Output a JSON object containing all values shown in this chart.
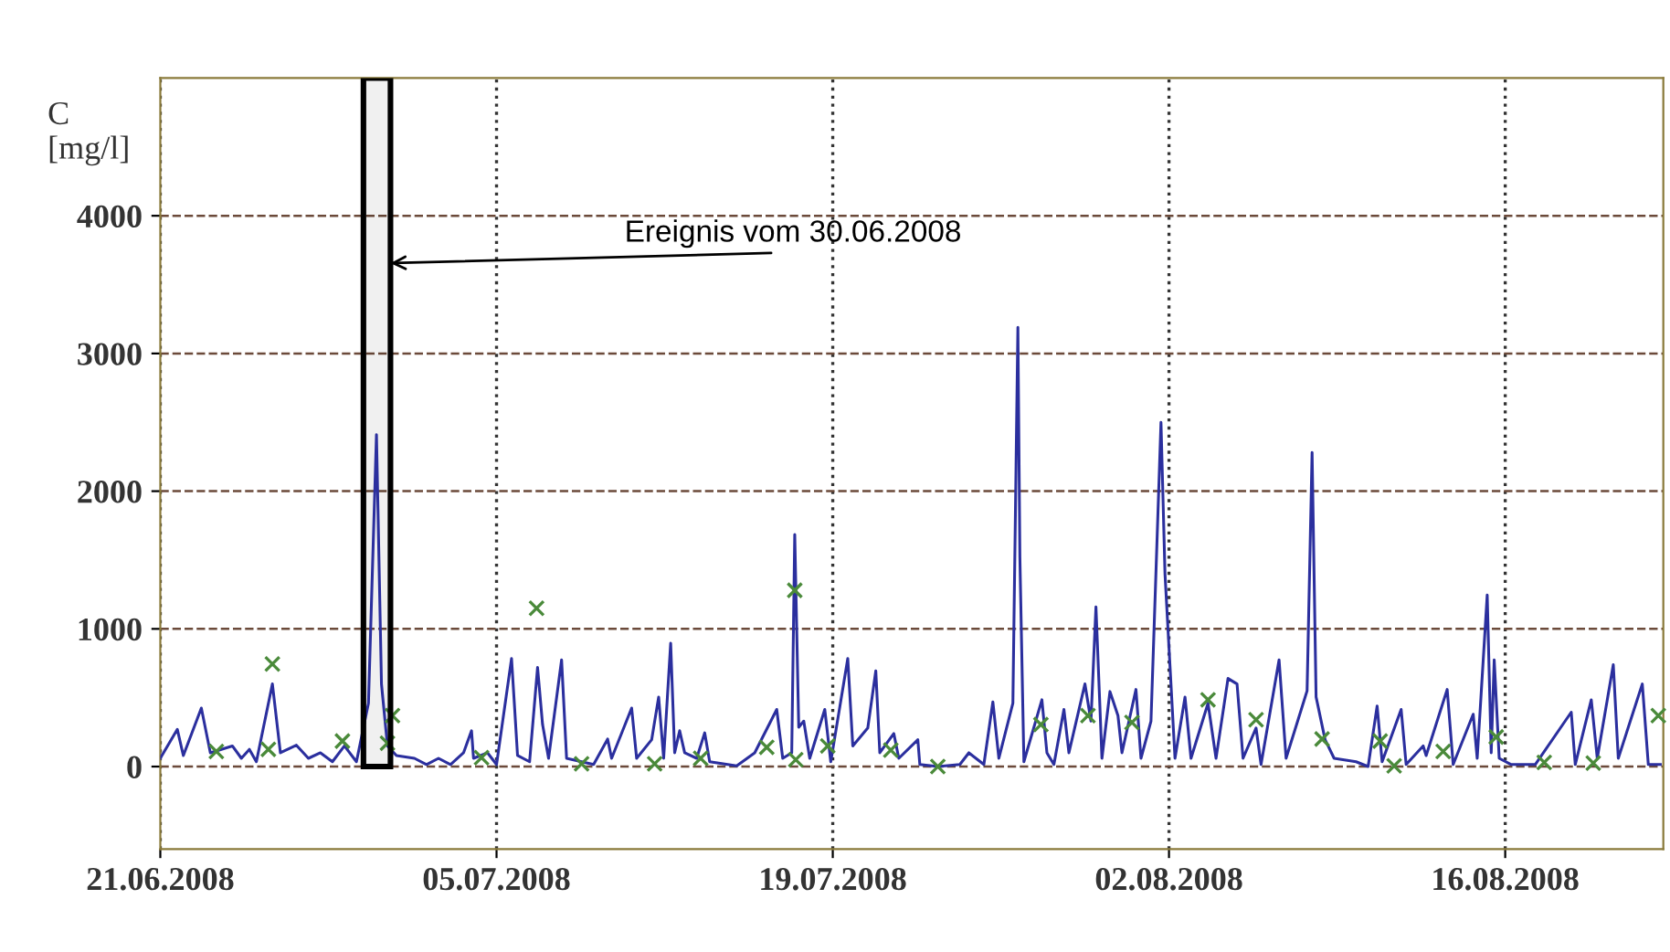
{
  "chart_data": {
    "type": "line",
    "ylabel": "C\n[mg/l]",
    "xlim": [
      "2008-06-21",
      "2008-08-22T14:00"
    ],
    "ylim": [
      -600,
      5000
    ],
    "xticks": [
      {
        "value": "2008-06-21",
        "label": "21.06.2008"
      },
      {
        "value": "2008-07-05",
        "label": "05.07.2008"
      },
      {
        "value": "2008-07-19",
        "label": "19.07.2008"
      },
      {
        "value": "2008-08-02",
        "label": "02.08.2008"
      },
      {
        "value": "2008-08-16",
        "label": "16.08.2008"
      }
    ],
    "yticks": [
      0,
      1000,
      2000,
      3000,
      4000
    ],
    "grid": true,
    "line_style": "dashed",
    "bands": [
      {
        "axis": "x",
        "from": "2008-06-29T11:00",
        "to": "2008-06-30T14:00",
        "color": "#000000",
        "label": "Ereignis vom 30.06.2008"
      }
    ],
    "series": [
      {
        "color": "#2b2f9e",
        "marker": "none",
        "line_style": "solid",
        "x": [
          "2008-06-21T00:00",
          "2008-06-21T17:00",
          "2008-06-21T23:00",
          "2008-06-22T17:00",
          "2008-06-23T02:00",
          "2008-06-24T00:00",
          "2008-06-24T09:00",
          "2008-06-24T17:00",
          "2008-06-25T00:00",
          "2008-06-25T16:00",
          "2008-06-26T00:00",
          "2008-06-26T16:00",
          "2008-06-27T04:00",
          "2008-06-27T16:00",
          "2008-06-28T04:00",
          "2008-06-28T16:00",
          "2008-06-29T04:00",
          "2008-06-29T16:00",
          "2008-06-30T00:00",
          "2008-06-30T05:00",
          "2008-06-30T11:00",
          "2008-06-30T20:00",
          "2008-07-01T14:00",
          "2008-07-02T02:00",
          "2008-07-02T14:00",
          "2008-07-03T02:00",
          "2008-07-03T15:00",
          "2008-07-03T23:00",
          "2008-07-04T01:00",
          "2008-07-04T15:00",
          "2008-07-05T00:00",
          "2008-07-05T15:00",
          "2008-07-05T21:00",
          "2008-07-06T09:00",
          "2008-07-06T17:00",
          "2008-07-06T22:00",
          "2008-07-07T04:00",
          "2008-07-07T17:00",
          "2008-07-07T22:00",
          "2008-07-09T01:00",
          "2008-07-09T15:00",
          "2008-07-09T19:00",
          "2008-07-10T15:00",
          "2008-07-10T20:00",
          "2008-07-11T11:00",
          "2008-07-11T18:00",
          "2008-07-11T23:00",
          "2008-07-12T06:00",
          "2008-07-12T10:00",
          "2008-07-12T15:00",
          "2008-07-12T20:00",
          "2008-07-13T08:00",
          "2008-07-13T16:00",
          "2008-07-13T21:00",
          "2008-07-15T00:00",
          "2008-07-15T18:00",
          "2008-07-16T16:00",
          "2008-07-16T22:00",
          "2008-07-17T07:00",
          "2008-07-17T10:00",
          "2008-07-17T14:00",
          "2008-07-17T19:00",
          "2008-07-18T01:00",
          "2008-07-18T16:00",
          "2008-07-18T22:00",
          "2008-07-19T15:00",
          "2008-07-19T20:00",
          "2008-07-20T11:00",
          "2008-07-20T19:00",
          "2008-07-20T23:00",
          "2008-07-21T13:00",
          "2008-07-21T18:00",
          "2008-07-22T13:00",
          "2008-07-22T15:00",
          "2008-07-23T09:00",
          "2008-07-24T07:00",
          "2008-07-24T16:00",
          "2008-07-25T07:00",
          "2008-07-25T16:00",
          "2008-07-25T22:00",
          "2008-07-26T12:00",
          "2008-07-26T17:00",
          "2008-07-26T19:00",
          "2008-07-26T23:00",
          "2008-07-27T17:00",
          "2008-07-27T22:00",
          "2008-07-28T05:00",
          "2008-07-28T15:00",
          "2008-07-28T20:00",
          "2008-07-29T12:00",
          "2008-07-29T18:00",
          "2008-07-29T23:00",
          "2008-07-30T05:00",
          "2008-07-30T13:00",
          "2008-07-30T21:00",
          "2008-07-31T01:00",
          "2008-07-31T15:00",
          "2008-07-31T20:00",
          "2008-08-01T06:00",
          "2008-08-01T16:00",
          "2008-08-01T20:00",
          "2008-08-02T01:00",
          "2008-08-02T06:00",
          "2008-08-02T16:00",
          "2008-08-02T22:00",
          "2008-08-03T15:00",
          "2008-08-03T23:00",
          "2008-08-04T11:00",
          "2008-08-04T20:00",
          "2008-08-05T02:00",
          "2008-08-05T15:00",
          "2008-08-05T20:00",
          "2008-08-06T14:00",
          "2008-08-06T21:00",
          "2008-08-07T18:00",
          "2008-08-07T23:00",
          "2008-08-08T03:00",
          "2008-08-08T12:00",
          "2008-08-08T21:00",
          "2008-08-09T19:00",
          "2008-08-10T07:00",
          "2008-08-10T16:00",
          "2008-08-10T21:00",
          "2008-08-11T16:00",
          "2008-08-11T21:00",
          "2008-08-12T14:00",
          "2008-08-12T17:00",
          "2008-08-13T14:00",
          "2008-08-13T20:00",
          "2008-08-14T16:00",
          "2008-08-14T20:00",
          "2008-08-15T06:00",
          "2008-08-15T10:00",
          "2008-08-15T13:00",
          "2008-08-15T18:00",
          "2008-08-16T06:00",
          "2008-08-17T06:00",
          "2008-08-18T18:00",
          "2008-08-18T22:00",
          "2008-08-19T14:00",
          "2008-08-19T20:00",
          "2008-08-20T12:00",
          "2008-08-20T17:00",
          "2008-08-21T17:00",
          "2008-08-21T23:00",
          "2008-08-22T11:00"
        ],
        "values": [
          60,
          270,
          80,
          425,
          100,
          150,
          60,
          125,
          35,
          600,
          100,
          155,
          60,
          100,
          35,
          150,
          35,
          460,
          2410,
          600,
          150,
          80,
          60,
          15,
          60,
          15,
          100,
          260,
          60,
          100,
          15,
          785,
          80,
          35,
          720,
          305,
          60,
          775,
          60,
          15,
          200,
          60,
          425,
          60,
          195,
          505,
          60,
          895,
          100,
          260,
          100,
          60,
          245,
          35,
          5,
          100,
          415,
          60,
          100,
          1685,
          285,
          330,
          60,
          415,
          35,
          785,
          150,
          280,
          695,
          100,
          240,
          60,
          195,
          15,
          0,
          15,
          100,
          15,
          470,
          60,
          460,
          3190,
          1520,
          35,
          485,
          100,
          15,
          415,
          100,
          600,
          330,
          1160,
          60,
          545,
          370,
          100,
          560,
          60,
          330,
          2500,
          1400,
          730,
          60,
          505,
          60,
          460,
          60,
          640,
          600,
          60,
          280,
          15,
          775,
          60,
          550,
          2280,
          505,
          195,
          60,
          35,
          0,
          440,
          35,
          415,
          15,
          150,
          80,
          560,
          15,
          380,
          60,
          1245,
          100,
          775,
          60,
          15,
          15,
          395,
          15,
          485,
          60,
          740,
          60,
          600,
          15,
          15
        ]
      },
      {
        "type": "scatter",
        "color": "#4a8a3a",
        "marker": "cross",
        "x": [
          "2008-06-23T08:00",
          "2008-06-25T12:00",
          "2008-06-25T16:00",
          "2008-06-28T14:00",
          "2008-06-30T11:00",
          "2008-06-30T16:00",
          "2008-07-04T09:00",
          "2008-07-06T16:00",
          "2008-07-08T13:00",
          "2008-07-11T14:00",
          "2008-07-13T12:00",
          "2008-07-16T06:00",
          "2008-07-17T10:00",
          "2008-07-17T11:00",
          "2008-07-18T19:00",
          "2008-07-21T10:00",
          "2008-07-23T09:00",
          "2008-07-27T16:00",
          "2008-07-29T15:00",
          "2008-07-31T11:00",
          "2008-08-03T15:00",
          "2008-08-05T15:00",
          "2008-08-08T09:00",
          "2008-08-10T19:00",
          "2008-08-11T09:00",
          "2008-08-13T10:00",
          "2008-08-15T15:00",
          "2008-08-17T15:00",
          "2008-08-19T16:00",
          "2008-08-22T09:00"
        ],
        "values": [
          110,
          125,
          745,
          185,
          170,
          370,
          65,
          1150,
          20,
          20,
          60,
          140,
          1280,
          50,
          150,
          120,
          0,
          305,
          370,
          320,
          485,
          340,
          200,
          185,
          5,
          110,
          215,
          30,
          25,
          370
        ]
      }
    ]
  }
}
